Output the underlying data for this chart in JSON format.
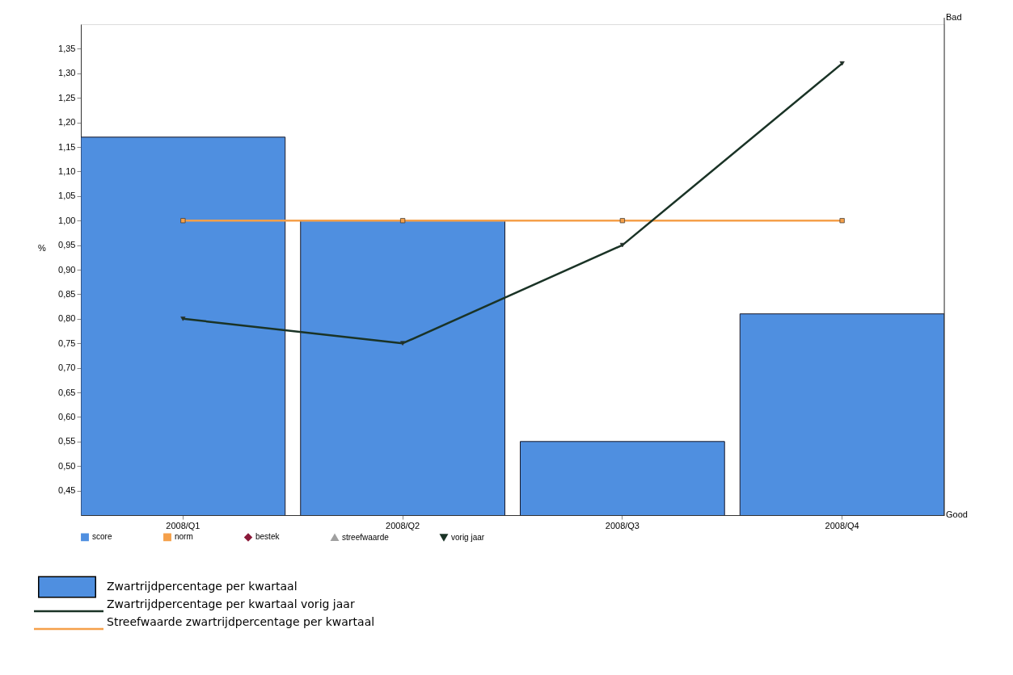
{
  "chart_data": {
    "type": "bar",
    "ylabel": "%",
    "categories": [
      "2008/Q1",
      "2008/Q2",
      "2008/Q3",
      "2008/Q4"
    ],
    "series": [
      {
        "name": "score",
        "color": "#4f8fe0",
        "marker": "square",
        "values": [
          1.17,
          1.0,
          0.55,
          0.81
        ]
      },
      {
        "name": "norm",
        "type": "line",
        "color": "#f5a04a",
        "marker": "square",
        "values": [
          1.0,
          1.0,
          1.0,
          1.0
        ]
      },
      {
        "name": "bestek",
        "type": "line",
        "color": "#8b1a3a",
        "marker": "diamond",
        "values": [
          null,
          null,
          null,
          null
        ]
      },
      {
        "name": "streefwaarde",
        "type": "line",
        "color": "#a0a0a0",
        "marker": "triangle",
        "values": [
          null,
          null,
          null,
          null
        ]
      },
      {
        "name": "vorig jaar",
        "type": "line",
        "color": "#1a3326",
        "marker": "triangle-down",
        "values": [
          0.8,
          0.75,
          0.95,
          1.32
        ]
      }
    ],
    "ylim": [
      0.4,
      1.4
    ],
    "yticks": [
      {
        "value": 0.45,
        "label": "0,45"
      },
      {
        "value": 0.5,
        "label": "0,50"
      },
      {
        "value": 0.55,
        "label": "0,55"
      },
      {
        "value": 0.6,
        "label": "0,60"
      },
      {
        "value": 0.65,
        "label": "0,65"
      },
      {
        "value": 0.7,
        "label": "0,70"
      },
      {
        "value": 0.75,
        "label": "0,75"
      },
      {
        "value": 0.8,
        "label": "0,80"
      },
      {
        "value": 0.85,
        "label": "0,85"
      },
      {
        "value": 0.9,
        "label": "0,90"
      },
      {
        "value": 0.95,
        "label": "0,95"
      },
      {
        "value": 1.0,
        "label": "1,00"
      },
      {
        "value": 1.05,
        "label": "1,05"
      },
      {
        "value": 1.1,
        "label": "1,10"
      },
      {
        "value": 1.15,
        "label": "1,15"
      },
      {
        "value": 1.2,
        "label": "1,20"
      },
      {
        "value": 1.25,
        "label": "1,25"
      },
      {
        "value": 1.3,
        "label": "1,30"
      },
      {
        "value": 1.35,
        "label": "1,35"
      }
    ],
    "grid": false,
    "legend": "bottom",
    "annotations": [
      "Bad",
      "Good",
      "Zwartrijdpercentage per kwartaal",
      "Zwartrijdpercentage per kwartaal vorig jaar",
      "Streefwaarde zwartrijdpercentage per kwartaal"
    ]
  }
}
